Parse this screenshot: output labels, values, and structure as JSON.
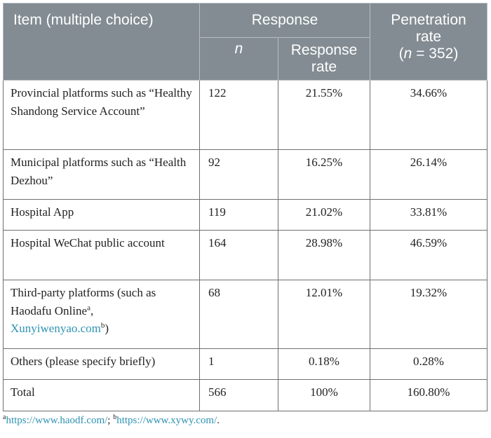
{
  "header": {
    "item": "Item (multiple choice)",
    "response": "Response",
    "penetration_line1": "Penetration rate",
    "penetration_n_italic": "n",
    "penetration_n_rest": " = 352)",
    "sub_n": "n",
    "sub_response_rate": "Response rate"
  },
  "rows": [
    {
      "item": "Provincial platforms such as “Healthy Shandong Service Account”",
      "n": "122",
      "response_rate": "21.55%",
      "penetration_rate": "34.66%"
    },
    {
      "item": "Municipal platforms such as “Health Dezhou”",
      "n": "92",
      "response_rate": "16.25%",
      "penetration_rate": "26.14%"
    },
    {
      "item": "Hospital App",
      "n": "119",
      "response_rate": "21.02%",
      "penetration_rate": "33.81%"
    },
    {
      "item": "Hospital WeChat public account",
      "n": "164",
      "response_rate": "28.98%",
      "penetration_rate": "46.59%"
    },
    {
      "item_prefix": "Third-party platforms (such as Haodafu Online",
      "item_sup_a": "a",
      "item_mid": ", ",
      "item_link": "Xunyiwenyao.com",
      "item_sup_b": "b",
      "item_suffix": ")",
      "n": "68",
      "response_rate": "12.01%",
      "penetration_rate": "19.32%"
    },
    {
      "item": "Others (please specify briefly)",
      "n": "1",
      "response_rate": "0.18%",
      "penetration_rate": "0.28%"
    },
    {
      "item": "Total",
      "n": "566",
      "response_rate": "100%",
      "penetration_rate": "160.80%"
    }
  ],
  "footnote": {
    "sup_a": "a",
    "link_a": "https://www.haodf.com/",
    "sep": "; ",
    "sup_b": "b",
    "link_b": "https://www.xywy.com/",
    "end": "."
  },
  "colors": {
    "header_bg": "#838c93",
    "link": "#2f93b3"
  }
}
